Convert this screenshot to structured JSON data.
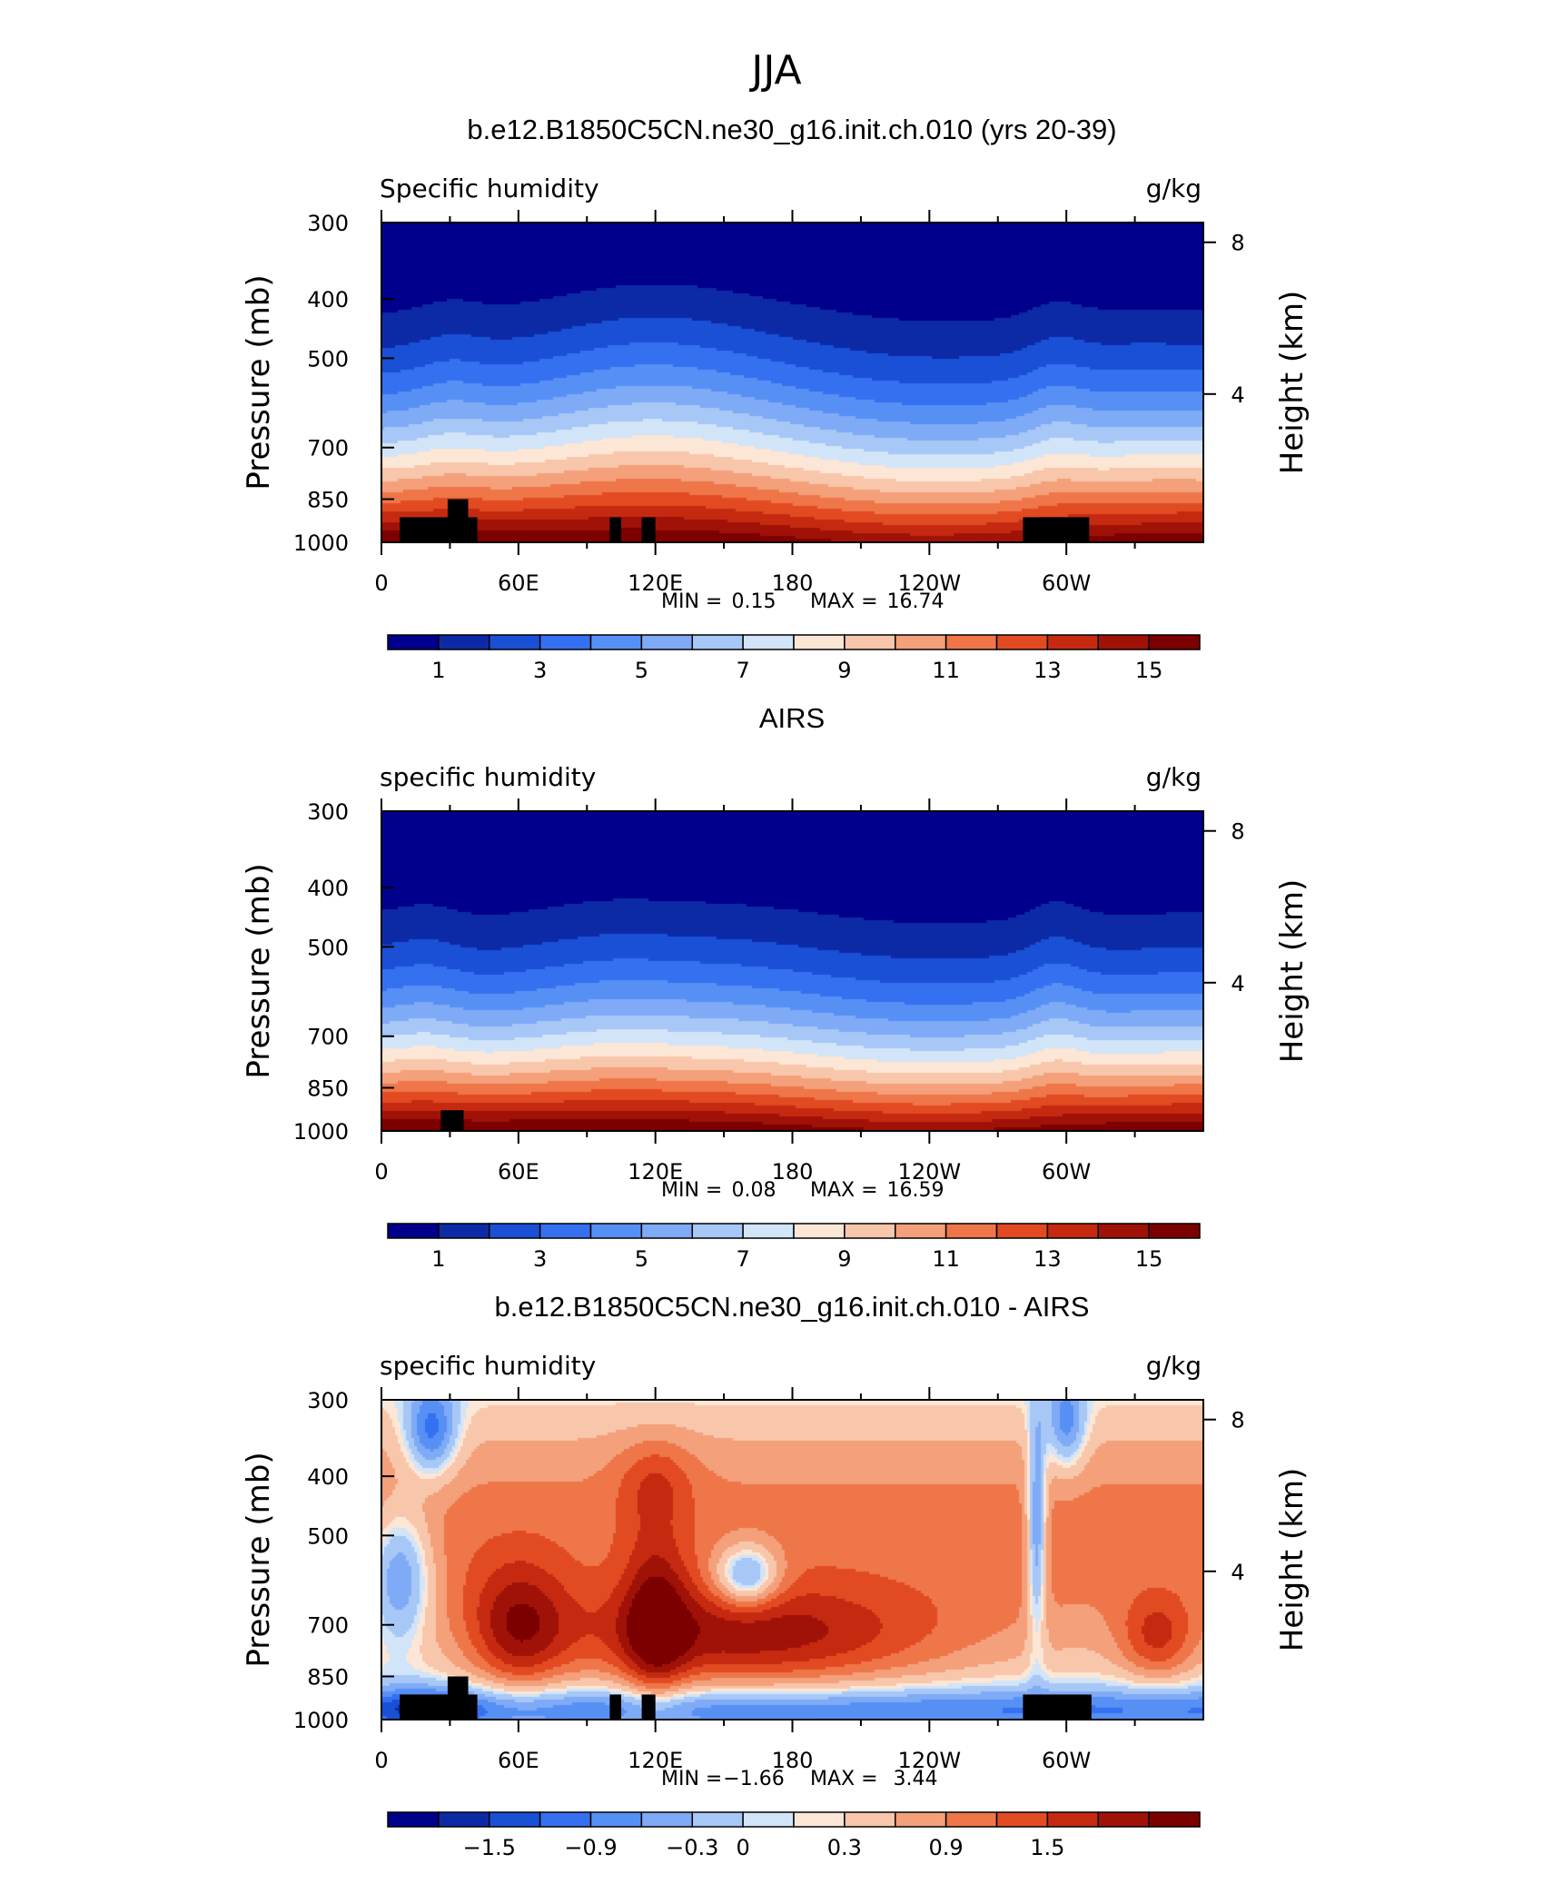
{
  "season": "JJA",
  "chart_data": [
    {
      "type": "heatmap",
      "title": "b.e12.B1850C5CN.ne30_g16.init.ch.010 (yrs 20-39)",
      "left_label": "Specific humidity",
      "right_label": "g/kg",
      "ylabel": "Pressure (mb)",
      "ylabel2": "Height (km)",
      "x_ticks": [
        "0",
        "60E",
        "120E",
        "180",
        "120W",
        "60W"
      ],
      "x_tick_values": [
        0,
        60,
        120,
        180,
        240,
        300
      ],
      "xlim": [
        0,
        360
      ],
      "y_ticks": [
        "300",
        "400",
        "500",
        "700",
        "850",
        "1000"
      ],
      "y_tick_values": [
        300,
        400,
        500,
        700,
        850,
        1000
      ],
      "ylim": [
        1000,
        300
      ],
      "height_ticks": [
        "8",
        "4"
      ],
      "height_tick_values": [
        8,
        4
      ],
      "stats": {
        "min_label": "MIN =",
        "min": "0.15",
        "max_label": "MAX =",
        "max": "16.74"
      },
      "colorbar": {
        "levels": [
          1,
          2,
          3,
          4,
          5,
          6,
          7,
          8,
          9,
          10,
          11,
          12,
          13,
          14,
          15
        ],
        "labels": [
          "1",
          "3",
          "5",
          "7",
          "9",
          "11",
          "13",
          "15"
        ],
        "colors": [
          "#00008c",
          "#0d2aa6",
          "#1a50d6",
          "#3570f0",
          "#5790f5",
          "#7eaaf6",
          "#a7c7f7",
          "#d1e4f8",
          "#fce7d6",
          "#f8c6aa",
          "#f3a07b",
          "#ee7649",
          "#e24b22",
          "#c52a10",
          "#a01208",
          "#7d0000"
        ]
      },
      "land_masks": [
        {
          "lon": [
            8,
            42
          ],
          "p_top": 910,
          "note": "Africa"
        },
        {
          "lon": [
            29,
            38
          ],
          "p_top": 850
        },
        {
          "lon": [
            100,
            105
          ],
          "p_top": 910
        },
        {
          "lon": [
            114,
            120
          ],
          "p_top": 910
        },
        {
          "lon": [
            281,
            310
          ],
          "p_top": 910,
          "note": "South America"
        }
      ]
    },
    {
      "type": "heatmap",
      "title": "AIRS",
      "left_label": "specific humidity",
      "right_label": "g/kg",
      "ylabel": "Pressure (mb)",
      "ylabel2": "Height (km)",
      "x_ticks": [
        "0",
        "60E",
        "120E",
        "180",
        "120W",
        "60W"
      ],
      "x_tick_values": [
        0,
        60,
        120,
        180,
        240,
        300
      ],
      "xlim": [
        0,
        360
      ],
      "y_ticks": [
        "300",
        "400",
        "500",
        "700",
        "850",
        "1000"
      ],
      "y_tick_values": [
        300,
        400,
        500,
        700,
        850,
        1000
      ],
      "ylim": [
        1000,
        300
      ],
      "height_ticks": [
        "8",
        "4"
      ],
      "height_tick_values": [
        8,
        4
      ],
      "stats": {
        "min_label": "MIN =",
        "min": "0.08",
        "max_label": "MAX =",
        "max": "16.59"
      },
      "colorbar": {
        "levels": [
          1,
          2,
          3,
          4,
          5,
          6,
          7,
          8,
          9,
          10,
          11,
          12,
          13,
          14,
          15
        ],
        "labels": [
          "1",
          "3",
          "5",
          "7",
          "9",
          "11",
          "13",
          "15"
        ],
        "colors": [
          "#00008c",
          "#0d2aa6",
          "#1a50d6",
          "#3570f0",
          "#5790f5",
          "#7eaaf6",
          "#a7c7f7",
          "#d1e4f8",
          "#fce7d6",
          "#f8c6aa",
          "#f3a07b",
          "#ee7649",
          "#e24b22",
          "#c52a10",
          "#a01208",
          "#7d0000"
        ]
      },
      "land_masks": [
        {
          "lon": [
            26,
            36
          ],
          "p_top": 925
        }
      ]
    },
    {
      "type": "heatmap",
      "title": "b.e12.B1850C5CN.ne30_g16.init.ch.010 - AIRS",
      "left_label": "specific humidity",
      "right_label": "g/kg",
      "ylabel": "Pressure (mb)",
      "ylabel2": "Height (km)",
      "x_ticks": [
        "0",
        "60E",
        "120E",
        "180",
        "120W",
        "60W"
      ],
      "x_tick_values": [
        0,
        60,
        120,
        180,
        240,
        300
      ],
      "xlim": [
        0,
        360
      ],
      "y_ticks": [
        "300",
        "400",
        "500",
        "700",
        "850",
        "1000"
      ],
      "y_tick_values": [
        300,
        400,
        500,
        700,
        850,
        1000
      ],
      "ylim": [
        1000,
        300
      ],
      "height_ticks": [
        "8",
        "4"
      ],
      "height_tick_values": [
        8,
        4
      ],
      "stats": {
        "min_label": "MIN =",
        "min": "−1.66",
        "max_label": "MAX =",
        "max": "3.44"
      },
      "colorbar": {
        "levels": [
          -1.8,
          -1.5,
          -1.2,
          -0.9,
          -0.6,
          -0.3,
          0,
          0.15,
          0.3,
          0.6,
          0.9,
          1.2,
          1.5,
          1.8,
          2.1
        ],
        "labels": [
          "−1.5",
          "−0.9",
          "−0.3",
          "0",
          "0.3",
          "0.9",
          "1.5"
        ],
        "label_values": [
          -1.5,
          -0.9,
          -0.3,
          0,
          0.3,
          0.9,
          1.5
        ],
        "colors": [
          "#00008c",
          "#0d2aa6",
          "#1a50d6",
          "#3570f0",
          "#5790f5",
          "#7eaaf6",
          "#a7c7f7",
          "#d1e4f8",
          "#fce7d6",
          "#f8c6aa",
          "#f3a07b",
          "#ee7649",
          "#e24b22",
          "#c52a10",
          "#a01208",
          "#7d0000"
        ]
      },
      "land_masks": [
        {
          "lon": [
            8,
            42
          ],
          "p_top": 910
        },
        {
          "lon": [
            29,
            38
          ],
          "p_top": 850
        },
        {
          "lon": [
            100,
            105
          ],
          "p_top": 910
        },
        {
          "lon": [
            114,
            120
          ],
          "p_top": 910
        },
        {
          "lon": [
            281,
            311
          ],
          "p_top": 910
        }
      ]
    }
  ]
}
